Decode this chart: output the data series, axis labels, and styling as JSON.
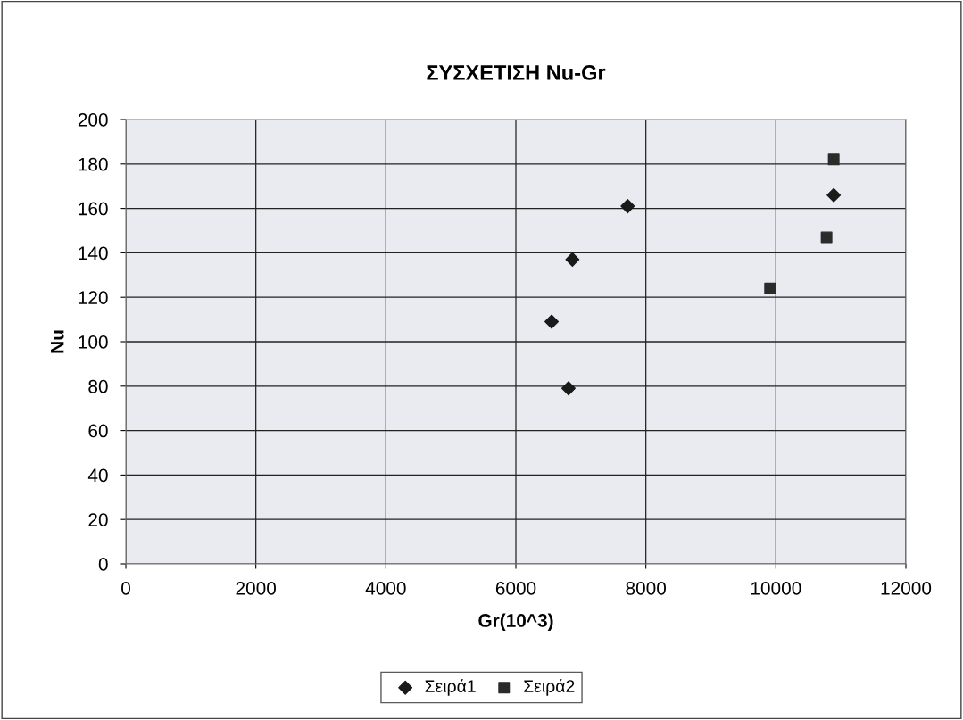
{
  "chart_data": {
    "type": "scatter",
    "title": "ΣΥΣΧΕΤΙΣΗ Nu-Gr",
    "xlabel": "Gr(10^3)",
    "ylabel": "Nu",
    "series": [
      {
        "name": "Σειρά1",
        "color": "#1a1a1a",
        "marker": "diamond",
        "x": [
          6550,
          6810,
          6870,
          7720,
          10890
        ],
        "values": [
          109,
          79,
          137,
          161,
          166
        ]
      },
      {
        "name": "Σειρά2",
        "color": "#2b2b2b",
        "marker": "square",
        "x": [
          9910,
          10780,
          10890
        ],
        "values": [
          124,
          147,
          182
        ]
      }
    ],
    "xlim": [
      0,
      12000
    ],
    "xticks": [
      0,
      2000,
      4000,
      6000,
      8000,
      10000,
      12000
    ],
    "ylim": [
      0,
      200
    ],
    "yticks": [
      0,
      20,
      40,
      60,
      80,
      100,
      120,
      140,
      160,
      180,
      200
    ],
    "grid": true,
    "legend": "bottom"
  }
}
